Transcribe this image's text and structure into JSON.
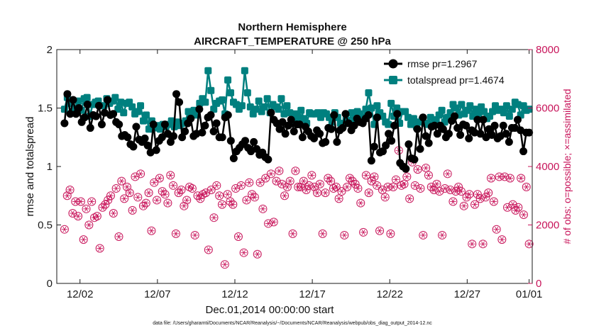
{
  "chart_data": {
    "type": "line",
    "title_lines": [
      "Northern Hemisphere",
      "AIRCRAFT_TEMPERATURE @ 250 hPa"
    ],
    "xlabel": "Dec.01,2014 00:00:00 start",
    "ylabel_left": "rmse and totalspread",
    "ylabel_right": "# of obs: o=possible; ×=assimilated",
    "footnote": "data file: /Users/gharamti/Documents/NCAR/Reanalysis/~/Documents/NCAR/Reanalysis/webpub/obs_diag_output_2014-12.nc",
    "xlim": [
      0.5,
      31.2
    ],
    "ylim_left": [
      0,
      2
    ],
    "ylim_right": [
      0,
      8000
    ],
    "x_ticks": [
      {
        "x": 2,
        "label": "12/02"
      },
      {
        "x": 7,
        "label": "12/07"
      },
      {
        "x": 12,
        "label": "12/12"
      },
      {
        "x": 17,
        "label": "12/17"
      },
      {
        "x": 22,
        "label": "12/22"
      },
      {
        "x": 27,
        "label": "12/27"
      },
      {
        "x": 31,
        "label": "01/01"
      }
    ],
    "y_ticks_left": [
      {
        "v": 0,
        "label": "0"
      },
      {
        "v": 0.5,
        "label": "0.5"
      },
      {
        "v": 1,
        "label": "1"
      },
      {
        "v": 1.5,
        "label": "1.5"
      },
      {
        "v": 2,
        "label": "2"
      }
    ],
    "y_ticks_right": [
      {
        "v": 0,
        "label": "0"
      },
      {
        "v": 2000,
        "label": "2000"
      },
      {
        "v": 4000,
        "label": "4000"
      },
      {
        "v": 6000,
        "label": "6000"
      },
      {
        "v": 8000,
        "label": "8000"
      }
    ],
    "colors": {
      "rmse": "#000000",
      "spread": "#00807f",
      "obs": "#c8145a"
    },
    "series": [
      {
        "name": "rmse",
        "legend": "rmse pr=1.2967",
        "values": [
          1.37,
          1.62,
          1.45,
          1.57,
          1.45,
          1.5,
          1.38,
          1.42,
          1.53,
          1.33,
          1.44,
          1.43,
          1.52,
          1.36,
          1.46,
          1.57,
          1.44,
          1.45,
          1.38,
          1.36,
          1.26,
          1.27,
          1.25,
          1.19,
          1.17,
          1.34,
          1.23,
          1.21,
          1.24,
          1.18,
          1.12,
          1.36,
          1.14,
          1.22,
          1.25,
          1.36,
          1.28,
          1.21,
          1.26,
          1.62,
          1.55,
          1.25,
          1.3,
          1.37,
          1.41,
          1.26,
          1.28,
          1.49,
          1.29,
          1.35,
          1.42,
          1.44,
          1.3,
          1.37,
          1.25,
          1.25,
          1.42,
          1.44,
          1.22,
          1.07,
          1.13,
          1.16,
          1.19,
          1.22,
          1.16,
          1.13,
          1.21,
          1.15,
          1.1,
          1.12,
          1.08,
          1.06,
          1.46,
          1.4,
          1.37,
          1.32,
          1.38,
          1.28,
          1.35,
          1.4,
          1.3,
          1.36,
          1.36,
          1.25,
          1.34,
          1.3,
          1.26,
          1.24,
          1.31,
          1.28,
          1.2,
          1.21,
          1.33,
          1.32,
          1.44,
          1.21,
          1.31,
          1.33,
          1.45,
          1.37,
          1.31,
          1.35,
          1.41,
          1.38,
          1.37,
          1.41,
          1.44,
          1.05,
          1.17,
          1.42,
          1.12,
          1.13,
          1.18,
          1.28,
          1.22,
          1.35,
          1.45,
          1.03,
          1.0,
          0.98,
          1.19,
          1.07,
          1.06,
          1.32,
          1.15,
          1.42,
          1.26,
          1.2,
          1.34,
          1.35,
          1.28,
          1.35,
          1.32,
          1.25,
          1.28,
          1.39,
          1.43,
          1.33,
          1.27,
          1.36,
          1.35,
          1.24,
          1.31,
          1.29,
          1.4,
          1.28,
          1.4,
          1.25,
          1.32,
          1.27,
          1.35,
          1.24,
          1.26,
          1.35,
          1.28,
          1.21,
          1.33,
          1.33,
          1.4,
          1.31,
          1.13,
          1.29,
          1.29
        ]
      },
      {
        "name": "totalspread",
        "legend": "totalspread pr=1.4674",
        "values": [
          1.49,
          1.59,
          1.54,
          1.47,
          1.5,
          1.56,
          1.48,
          1.58,
          1.59,
          1.43,
          1.53,
          1.55,
          1.56,
          1.52,
          1.52,
          1.58,
          1.54,
          1.56,
          1.59,
          1.49,
          1.55,
          1.46,
          1.54,
          1.55,
          1.51,
          1.45,
          1.47,
          1.52,
          1.39,
          1.44,
          1.32,
          1.39,
          1.33,
          1.35,
          1.32,
          1.36,
          1.34,
          1.36,
          1.39,
          1.34,
          1.38,
          1.35,
          1.37,
          1.39,
          1.47,
          1.44,
          1.48,
          1.44,
          1.54,
          1.58,
          1.55,
          1.82,
          1.65,
          1.49,
          1.54,
          1.56,
          1.57,
          1.45,
          1.74,
          1.63,
          1.55,
          1.53,
          1.49,
          1.52,
          1.82,
          1.63,
          1.51,
          1.45,
          1.49,
          1.56,
          1.47,
          1.51,
          1.58,
          1.46,
          1.53,
          1.51,
          1.49,
          1.58,
          1.45,
          1.52,
          1.46,
          1.37,
          1.45,
          1.42,
          1.48,
          1.41,
          1.37,
          1.46,
          1.45,
          1.45,
          1.46,
          1.42,
          1.46,
          1.45,
          1.42,
          1.38,
          1.46,
          1.42,
          1.37,
          1.36,
          1.4,
          1.37,
          1.46,
          1.4,
          1.47,
          1.45,
          1.4,
          1.49,
          1.63,
          1.5,
          1.36,
          1.52,
          1.46,
          1.43,
          1.38,
          1.36,
          1.54,
          1.43,
          1.5,
          1.37,
          1.47,
          1.47,
          1.42,
          1.36,
          1.41,
          1.34,
          1.38,
          1.4,
          1.37,
          1.36,
          1.42,
          1.35,
          1.4,
          1.44,
          1.48,
          1.38,
          1.42,
          1.46,
          1.53,
          1.5,
          1.44,
          1.53,
          1.45,
          1.48,
          1.52,
          1.43,
          1.49,
          1.44,
          1.51,
          1.47,
          1.41,
          1.43,
          1.47,
          1.52,
          1.48,
          1.49,
          1.46,
          1.52,
          1.43,
          1.49,
          1.55,
          1.53,
          1.44,
          1.52,
          1.48,
          1.49
        ]
      },
      {
        "name": "possible",
        "values": [
          1850,
          3000,
          3200,
          2400,
          2800,
          2300,
          2800,
          1500,
          2550,
          2000,
          2800,
          2250,
          2300,
          1200,
          2600,
          2700,
          2850,
          3000,
          2400,
          3250,
          1600,
          3500,
          2900,
          3300,
          3100,
          2500,
          3650,
          2950,
          3750,
          2650,
          2750,
          3100,
          1800,
          3450,
          2850,
          3600,
          3150,
          3050,
          2750,
          3700,
          3350,
          1700,
          3100,
          3200,
          2650,
          2850,
          3300,
          3250,
          1650,
          3000,
          2900,
          3050,
          3100,
          1150,
          3200,
          2250,
          3350,
          3000,
          2700,
          650,
          3050,
          2800,
          2700,
          3250,
          1600,
          3350,
          1050,
          2850,
          3450,
          3050,
          2950,
          1000,
          3450,
          2550,
          3600,
          2050,
          3750,
          2100,
          3500,
          3850,
          3400,
          3000,
          3300,
          3500,
          1700,
          3850,
          3300,
          3300,
          3500,
          3200,
          3350,
          3700,
          3300,
          3100,
          3400,
          1700,
          3100,
          3600,
          3500,
          3250,
          3300,
          2900,
          3150,
          1650,
          3300,
          3600,
          3500,
          3400,
          3250,
          2750,
          1750,
          3700,
          3100,
          3500,
          3650,
          3350,
          1800,
          3200,
          2950,
          3300,
          1700,
          3300,
          3550,
          4550,
          3350,
          3400,
          3650,
          2900,
          4150,
          3350,
          3900,
          3250,
          1650,
          3950,
          3700,
          3300,
          3200,
          3400,
          3150,
          1650,
          3250,
          3750,
          3200,
          2800,
          3150,
          3300,
          3150,
          2650,
          2950,
          3050,
          1350,
          2700,
          3050,
          2900,
          1350,
          2950,
          3100,
          3600,
          2800,
          1850,
          3650,
          1500,
          3650,
          2600,
          3600,
          2700,
          2500,
          2600,
          3600,
          2350,
          3300,
          1350
        ]
      }
    ]
  }
}
